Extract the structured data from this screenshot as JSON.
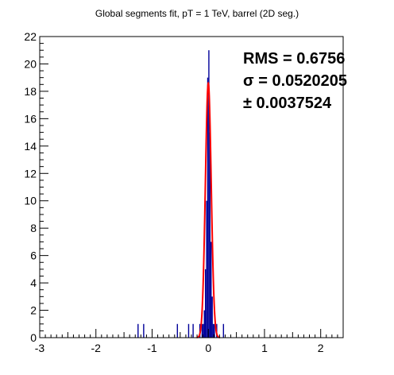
{
  "chart_data": {
    "type": "bar",
    "title": "Global segments fit, pT = 1 TeV, barrel (2D seg.)",
    "xlabel": "",
    "ylabel": "",
    "xlim": [
      -3,
      2.4
    ],
    "ylim": [
      0,
      22
    ],
    "x_ticks": [
      -3,
      -2,
      -1,
      0,
      1,
      2
    ],
    "y_ticks": [
      0,
      2,
      4,
      6,
      8,
      10,
      12,
      14,
      16,
      18,
      20,
      22
    ],
    "grid": false,
    "bin_width": 0.02,
    "hist_color": "#000099",
    "fit_color": "#ff0000",
    "histogram": {
      "x": [
        -1.25,
        -1.15,
        -0.55,
        -0.35,
        -0.27,
        -0.15,
        -0.11,
        -0.09,
        -0.07,
        -0.05,
        -0.03,
        -0.01,
        0.01,
        0.03,
        0.05,
        0.07,
        0.09,
        0.11,
        0.15,
        0.27
      ],
      "values": [
        1,
        1,
        1,
        1,
        1,
        1,
        1,
        1,
        2,
        5,
        10,
        19,
        21,
        15,
        7,
        3,
        1,
        1,
        1,
        1
      ]
    },
    "fit": {
      "type": "gaussian",
      "amplitude": 18.6,
      "mean": 0.0,
      "sigma": 0.0520205
    },
    "stats": {
      "rms": "RMS = 0.6756",
      "sigma": "σ = 0.0520205",
      "error": "± 0.0037524"
    }
  }
}
